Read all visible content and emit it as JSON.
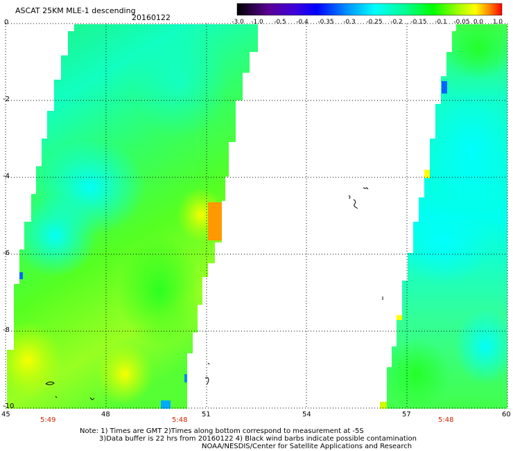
{
  "header": {
    "title": "ASCAT 25KM MLE-1 descending",
    "date": "20160122"
  },
  "colorbar": {
    "labels": [
      "-3.0",
      "-1.0",
      "-0.5",
      "-0.4",
      "-0.35",
      "-0.3",
      "-0.25",
      "-0.2",
      "-0.15",
      "-0.1",
      "-0.05",
      "0.0",
      "1.0"
    ],
    "colors": [
      "#140014",
      "#3c0064",
      "#5000c8",
      "#0000ff",
      "#0064ff",
      "#00b4ff",
      "#00ffff",
      "#00ff8c",
      "#00ff00",
      "#8cff00",
      "#ffff00",
      "#ff8c00",
      "#ff0000"
    ]
  },
  "axes": {
    "y_ticks": [
      "0",
      "-2",
      "-4",
      "-6",
      "-8",
      "-10"
    ],
    "x_ticks": [
      "45",
      "48",
      "51",
      "54",
      "57",
      "60"
    ],
    "times": [
      "5:49",
      "5:48",
      "5:48"
    ]
  },
  "footer": {
    "line1": "Note: 1) Times are GMT 2)Times along bottom correspond to measurement at -5S",
    "line2": "3)Data buffer is 22 hrs from 20160122 4) Black wind barbs indicate possible contamination",
    "line3": "NOAA/NESDIS/Center for Satellite Applications and Research"
  }
}
